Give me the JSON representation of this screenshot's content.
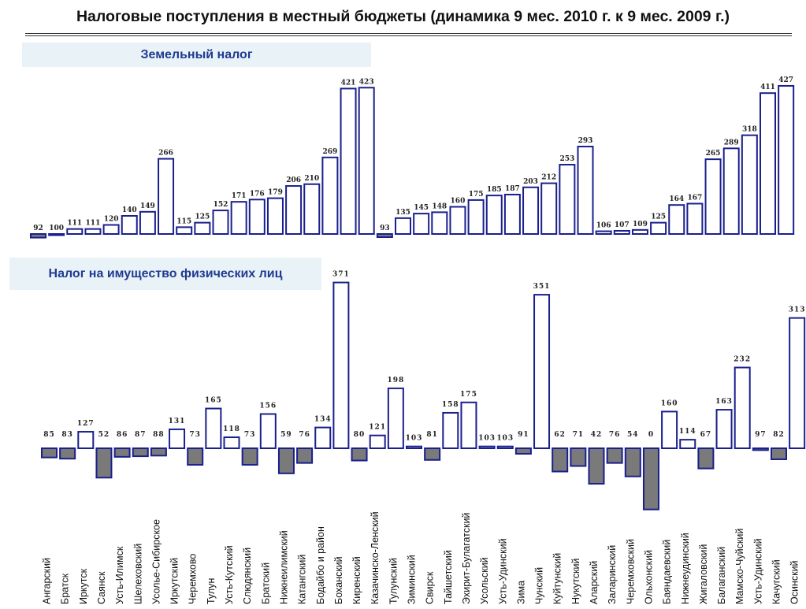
{
  "page": {
    "title": "Налоговые поступления в местный бюджеты (динамика 9 мес. 2010 г. к 9 мес. 2009 г.)"
  },
  "chart_data": [
    {
      "type": "bar",
      "title": "Земельный налог",
      "categories": [
        "Ангарский",
        "Братск",
        "Иркутск",
        "Саянск",
        "Усть-Илимск",
        "Шелеховский",
        "Усолье-Сибирское",
        "Иркутский",
        "Черемхово",
        "Тулун",
        "Усть-Кутский",
        "Слюдянский",
        "Братский",
        "Нижнеилимский",
        "Катангский",
        "Бодайбо и район",
        "Боханский",
        "Киренский",
        "Казачинско-Ленский",
        "Тулунский",
        "Зиминский",
        "Свирск",
        "Тайшетский",
        "Эхирит-Булагатский",
        "Усольский",
        "Усть-Удинский",
        "Зима",
        "Чунский",
        "Куйтунский",
        "Нукутский",
        "Аларский",
        "Заларинский",
        "Черемховский",
        "Ольхонский",
        "Баяндаевский",
        "Нижнеудинский",
        "Жигаловский",
        "Балаганский",
        "Мамско-Чуйский",
        "Усть-Удинский",
        "Качугский",
        "Осинский"
      ],
      "values": [
        92,
        100,
        111,
        111,
        120,
        140,
        149,
        266,
        115,
        125,
        152,
        171,
        176,
        179,
        206,
        210,
        269,
        421,
        423,
        93,
        135,
        145,
        148,
        160,
        175,
        185,
        187,
        203,
        212,
        253,
        293,
        106,
        107,
        109,
        125,
        164,
        167,
        265,
        289,
        318,
        411,
        427
      ],
      "baseline": 100,
      "colors": {
        "above": "#ffffff",
        "below": "#7a7a7a",
        "stroke": "#1a1f8c"
      }
    },
    {
      "type": "bar",
      "title": "Налог на имущество физических лиц",
      "categories": [
        "Ангарский",
        "Братск",
        "Иркутск",
        "Саянск",
        "Усть-Илимск",
        "Шелеховский",
        "Усолье-Сибирское",
        "Иркутский",
        "Черемхово",
        "Тулун",
        "Усть-Кутский",
        "Слюдянский",
        "Братский",
        "Нижнеилимский",
        "Катангский",
        "Бодайбо и район",
        "Боханский",
        "Киренский",
        "Казачинско-Ленский",
        "Тулунский",
        "Зиминский",
        "Свирск",
        "Тайшетский",
        "Эхирит-Булагатский",
        "Усольский",
        "Усть-Удинский",
        "Зима",
        "Чунский",
        "Куйтунский",
        "Нукутский",
        "Аларский",
        "Заларинский",
        "Черемховский",
        "Ольхонский",
        "Баяндаевский",
        "Нижнеудинский",
        "Жигаловский",
        "Балаганский",
        "Мамско-Чуйский",
        "Усть-Удинский",
        "Качугский",
        "Осинский"
      ],
      "values": [
        85,
        83,
        127,
        52,
        86,
        87,
        88,
        131,
        73,
        165,
        118,
        73,
        156,
        59,
        76,
        134,
        371,
        80,
        121,
        198,
        103,
        81,
        158,
        175,
        103,
        103,
        91,
        351,
        62,
        71,
        42,
        76,
        54,
        0,
        160,
        114,
        67,
        163,
        232,
        97,
        82,
        313
      ],
      "baseline": 100,
      "colors": {
        "above": "#ffffff",
        "below": "#7a7a7a",
        "stroke": "#1a1f8c"
      }
    }
  ]
}
